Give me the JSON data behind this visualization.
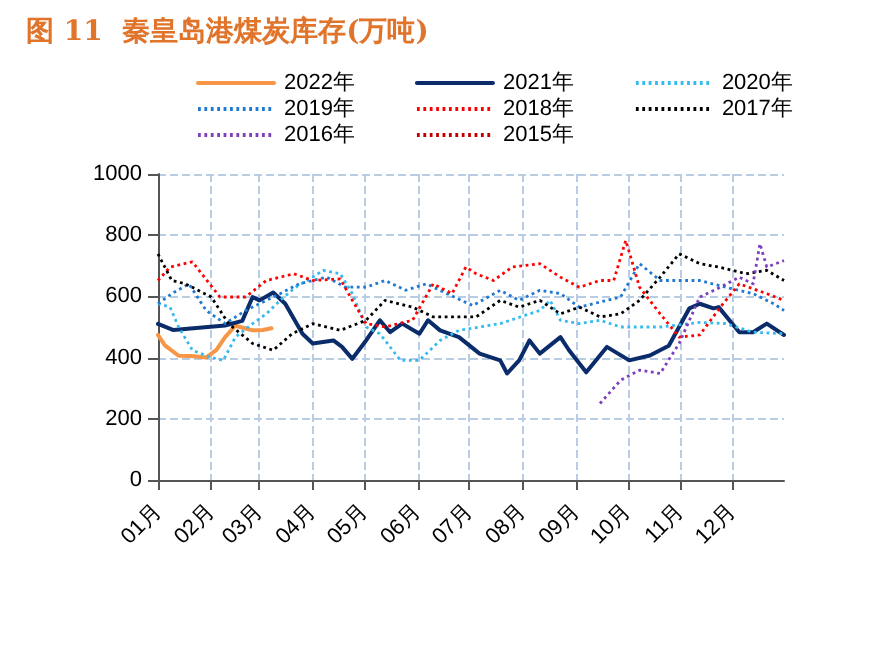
{
  "chart_data": {
    "type": "line",
    "title": "图 11  秦皇岛港煤炭库存(万吨)",
    "xlim": [
      "--01-01",
      "--12-31"
    ],
    "xticks": [
      {
        "value": "--01-01",
        "label": "01月"
      },
      {
        "value": "--02-01",
        "label": "02月"
      },
      {
        "value": "--03-01",
        "label": "03月"
      },
      {
        "value": "--04-01",
        "label": "04月"
      },
      {
        "value": "--05-01",
        "label": "05月"
      },
      {
        "value": "--06-01",
        "label": "06月"
      },
      {
        "value": "--07-01",
        "label": "07月"
      },
      {
        "value": "--08-01",
        "label": "08月"
      },
      {
        "value": "--09-01",
        "label": "09月"
      },
      {
        "value": "--10-01",
        "label": "10月"
      },
      {
        "value": "--11-01",
        "label": "11月"
      },
      {
        "value": "--12-01",
        "label": "12月"
      }
    ],
    "ylim": [
      0,
      1000
    ],
    "yticks": [
      0,
      200,
      400,
      600,
      800,
      1000
    ],
    "grid": true,
    "legend": "top",
    "marker": "none",
    "series": [
      {
        "name": "2022年",
        "color": "#f79646",
        "line_style": "solid",
        "x": [
          "--01-01",
          "--01-05",
          "--01-13",
          "--01-20",
          "--01-29",
          "--02-04",
          "--02-09",
          "--02-15",
          "--02-21",
          "--02-25",
          "--03-03",
          "--03-08"
        ],
        "values": [
          474,
          440,
          406,
          405,
          400,
          425,
          467,
          504,
          495,
          489,
          490,
          496
        ]
      },
      {
        "name": "2021年",
        "color": "#0b2c6b",
        "line_style": "solid",
        "x": [
          "--01-01",
          "--01-10",
          "--01-20",
          "--01-30",
          "--02-09",
          "--02-19",
          "--02-25",
          "--03-01",
          "--03-09",
          "--03-16",
          "--03-26",
          "--04-01",
          "--04-13",
          "--04-18",
          "--04-24",
          "--05-02",
          "--05-10",
          "--05-16",
          "--05-23",
          "--06-02",
          "--06-07",
          "--06-14",
          "--06-25",
          "--07-07",
          "--07-19",
          "--07-23",
          "--07-30",
          "--08-05",
          "--08-11",
          "--08-23",
          "--08-28",
          "--09-07",
          "--09-19",
          "--10-02",
          "--10-14",
          "--10-25",
          "--11-06",
          "--11-12",
          "--11-20",
          "--11-23",
          "--12-05",
          "--12-13",
          "--12-21",
          "--12-31"
        ],
        "values": [
          510,
          490,
          495,
          500,
          505,
          520,
          598,
          587,
          613,
          576,
          478,
          446,
          456,
          435,
          396,
          456,
          522,
          483,
          511,
          478,
          522,
          489,
          467,
          413,
          391,
          348,
          391,
          456,
          413,
          467,
          424,
          352,
          435,
          391,
          407,
          439,
          561,
          576,
          561,
          565,
          483,
          483,
          511,
          474
        ]
      },
      {
        "name": "2020年",
        "color": "#33bbee",
        "line_style": "dotted",
        "x": [
          "--01-01",
          "--01-08",
          "--01-13",
          "--01-21",
          "--01-31",
          "--02-08",
          "--02-15",
          "--02-25",
          "--03-05",
          "--03-13",
          "--03-22",
          "--04-01",
          "--04-07",
          "--04-17",
          "--04-24",
          "--05-02",
          "--05-10",
          "--05-22",
          "--06-02",
          "--06-14",
          "--06-25",
          "--07-19",
          "--08-11",
          "--08-17",
          "--08-23",
          "--09-03",
          "--09-15",
          "--09-27",
          "--10-20",
          "--11-12",
          "--11-27",
          "--12-13",
          "--12-31"
        ],
        "values": [
          576,
          565,
          500,
          424,
          402,
          391,
          467,
          511,
          543,
          587,
          630,
          663,
          685,
          674,
          609,
          500,
          478,
          391,
          391,
          456,
          489,
          511,
          554,
          587,
          522,
          511,
          522,
          500,
          500,
          515,
          511,
          483,
          478
        ]
      },
      {
        "name": "2019年",
        "color": "#1f78d1",
        "line_style": "dotted",
        "x": [
          "--01-01",
          "--01-09",
          "--01-19",
          "--01-29",
          "--02-09",
          "--02-21",
          "--03-01",
          "--03-13",
          "--03-24",
          "--04-09",
          "--04-20",
          "--05-02",
          "--05-13",
          "--05-25",
          "--06-06",
          "--06-18",
          "--07-03",
          "--07-19",
          "--07-30",
          "--08-11",
          "--08-23",
          "--09-03",
          "--09-27",
          "--10-08",
          "--10-20",
          "--11-12",
          "--11-27",
          "--12-13",
          "--12-25",
          "--12-31"
        ],
        "values": [
          576,
          609,
          641,
          554,
          511,
          554,
          576,
          609,
          641,
          663,
          630,
          630,
          652,
          620,
          641,
          609,
          570,
          620,
          587,
          620,
          609,
          565,
          598,
          707,
          652,
          652,
          630,
          609,
          576,
          554
        ]
      },
      {
        "name": "2018年",
        "color": "#ff0000",
        "line_style": "dotted",
        "x": [
          "--01-01",
          "--01-08",
          "--01-21",
          "--02-06",
          "--02-21",
          "--03-05",
          "--03-21",
          "--04-01",
          "--04-17",
          "--04-24",
          "--05-02",
          "--05-13",
          "--05-29",
          "--06-10",
          "--06-21",
          "--06-29",
          "--07-05",
          "--07-15",
          "--07-26",
          "--08-11",
          "--08-23",
          "--09-03",
          "--09-15",
          "--09-23",
          "--09-30",
          "--10-08",
          "--10-20",
          "--10-31",
          "--11-12",
          "--11-24",
          "--12-05",
          "--12-21",
          "--12-31"
        ],
        "values": [
          652,
          696,
          713,
          598,
          598,
          652,
          674,
          652,
          657,
          587,
          511,
          500,
          522,
          641,
          609,
          696,
          674,
          652,
          696,
          707,
          663,
          630,
          652,
          652,
          783,
          630,
          543,
          467,
          474,
          565,
          641,
          609,
          587
        ]
      },
      {
        "name": "2017年",
        "color": "#000000",
        "line_style": "dotted",
        "x": [
          "--01-01",
          "--01-09",
          "--01-17",
          "--02-01",
          "--02-11",
          "--02-25",
          "--03-09",
          "--03-20",
          "--04-01",
          "--04-17",
          "--05-02",
          "--05-13",
          "--05-29",
          "--06-10",
          "--06-25",
          "--07-05",
          "--07-19",
          "--07-30",
          "--08-11",
          "--08-23",
          "--09-03",
          "--09-15",
          "--09-27",
          "--10-08",
          "--10-20",
          "--10-31",
          "--11-12",
          "--11-23",
          "--12-09",
          "--12-21",
          "--12-31"
        ],
        "values": [
          739,
          652,
          641,
          598,
          511,
          446,
          424,
          478,
          511,
          489,
          522,
          587,
          565,
          533,
          533,
          533,
          587,
          565,
          587,
          543,
          565,
          533,
          543,
          587,
          663,
          739,
          707,
          696,
          674,
          685,
          652
        ]
      },
      {
        "name": "2016年",
        "color": "#7b3fbf",
        "line_style": "dotted",
        "x": [
          "--09-15",
          "--09-27",
          "--10-08",
          "--10-20",
          "--10-31",
          "--11-12",
          "--11-24",
          "--12-05",
          "--12-13",
          "--12-17",
          "--12-21",
          "--12-31"
        ],
        "values": [
          250,
          326,
          359,
          348,
          446,
          598,
          630,
          663,
          641,
          772,
          696,
          717
        ]
      },
      {
        "name": "2015年",
        "color": "#c00000",
        "line_style": "dotted"
      }
    ]
  }
}
